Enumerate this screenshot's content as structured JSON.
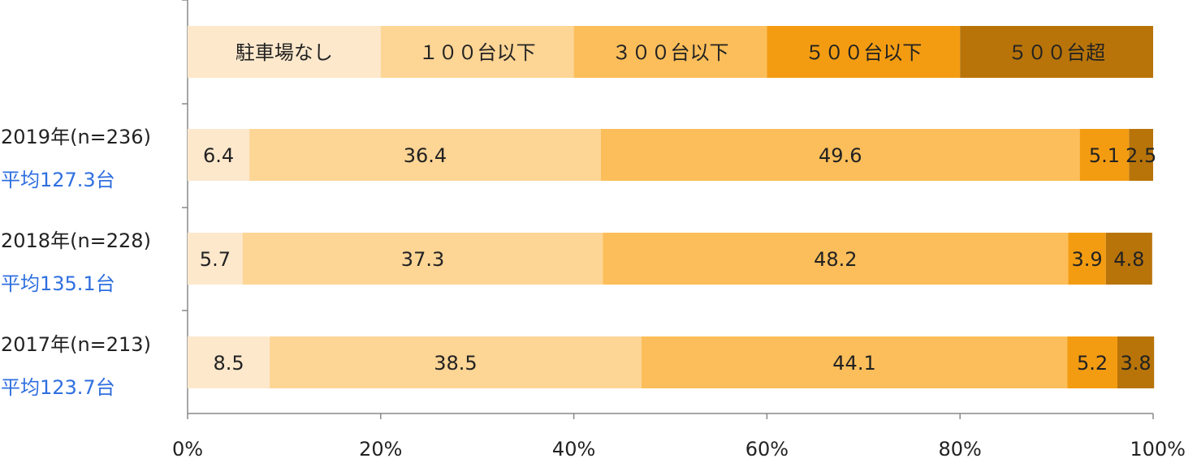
{
  "chart_data": {
    "type": "bar",
    "orientation": "horizontal",
    "stacked": true,
    "xlim": [
      0,
      100
    ],
    "x_tick_labels": [
      "0%",
      "20%",
      "40%",
      "60%",
      "80%",
      "100%"
    ],
    "x_ticks": [
      0,
      20,
      40,
      60,
      80,
      100
    ],
    "grid": false,
    "legend_position": "top",
    "categories": [
      {
        "label": "2019年(n=236)",
        "average_label": "平均127.3台"
      },
      {
        "label": "2018年(n=228)",
        "average_label": "平均135.1台"
      },
      {
        "label": "2017年(n=213)",
        "average_label": "平均123.7台"
      }
    ],
    "series": [
      {
        "name": "駐車場なし",
        "color": "#fde8cc",
        "values": [
          6.4,
          5.7,
          8.5
        ],
        "labels": [
          "6.4",
          "5.7",
          "8.5"
        ]
      },
      {
        "name": "１００台以下",
        "color": "#fdd595",
        "values": [
          36.4,
          37.3,
          38.5
        ],
        "labels": [
          "36.4",
          "37.3",
          "38.5"
        ]
      },
      {
        "name": "３００台以下",
        "color": "#fcbe5a",
        "values": [
          49.6,
          48.2,
          44.1
        ],
        "labels": [
          "49.6",
          "48.2",
          "44.1"
        ]
      },
      {
        "name": "５００台以下",
        "color": "#f39c12",
        "values": [
          5.1,
          3.9,
          5.2
        ],
        "labels": [
          "5.1",
          "3.9",
          "5.2"
        ]
      },
      {
        "name": "５００台超",
        "color": "#b87409",
        "values": [
          2.5,
          4.8,
          3.8
        ],
        "labels": [
          "2.5",
          "4.8",
          "3.8"
        ]
      }
    ]
  }
}
